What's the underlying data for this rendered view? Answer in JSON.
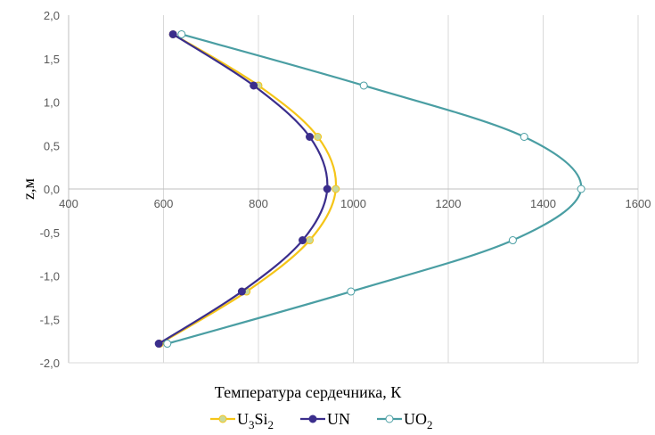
{
  "chart_data": {
    "type": "line",
    "xlabel": "Температура сердечника, К",
    "ylabel": "z,м",
    "xlim": [
      400,
      1600
    ],
    "ylim": [
      -2.0,
      2.0
    ],
    "x_ticks": [
      400,
      600,
      800,
      1000,
      1200,
      1400,
      1600
    ],
    "y_ticks": [
      2.0,
      1.5,
      1.0,
      0.5,
      0.0,
      -0.5,
      -1.0,
      -1.5,
      -2.0
    ],
    "x_tick_labels": [
      "400",
      "600",
      "800",
      "1000",
      "1200",
      "1400",
      "1600"
    ],
    "y_tick_labels": [
      "2,0",
      "1,5",
      "1,0",
      "0,5",
      "0,0",
      "-0,5",
      "-1,0",
      "-1,5",
      "-2,0"
    ],
    "grid": "vertical",
    "legend_position": "bottom",
    "series": [
      {
        "name": "U3Si2",
        "legend_parts": [
          [
            "U",
            ""
          ],
          [
            "3",
            "sub"
          ],
          [
            "Si",
            ""
          ],
          [
            "2",
            "sub"
          ]
        ],
        "color": "#f5c518",
        "marker_fill": "#c9d99a",
        "points": [
          [
            620,
            1.78
          ],
          [
            800,
            1.19
          ],
          [
            925,
            0.6
          ],
          [
            963,
            0.0
          ],
          [
            908,
            -0.59
          ],
          [
            775,
            -1.18
          ],
          [
            592,
            -1.78
          ]
        ]
      },
      {
        "name": "UN",
        "legend_parts": [
          [
            "UN",
            ""
          ]
        ],
        "color": "#3b2e8c",
        "marker_fill": "#3b2e8c",
        "points": [
          [
            620,
            1.78
          ],
          [
            790,
            1.19
          ],
          [
            908,
            0.6
          ],
          [
            945,
            0.0
          ],
          [
            893,
            -0.59
          ],
          [
            765,
            -1.18
          ],
          [
            590,
            -1.78
          ]
        ]
      },
      {
        "name": "UO2",
        "legend_parts": [
          [
            "UO",
            ""
          ],
          [
            "2",
            "sub"
          ]
        ],
        "color": "#4a9ea3",
        "marker_fill": "#ffffff",
        "points": [
          [
            638,
            1.78
          ],
          [
            1022,
            1.19
          ],
          [
            1360,
            0.6
          ],
          [
            1480,
            0.0
          ],
          [
            1336,
            -0.59
          ],
          [
            995,
            -1.18
          ],
          [
            608,
            -1.78
          ]
        ]
      }
    ]
  }
}
